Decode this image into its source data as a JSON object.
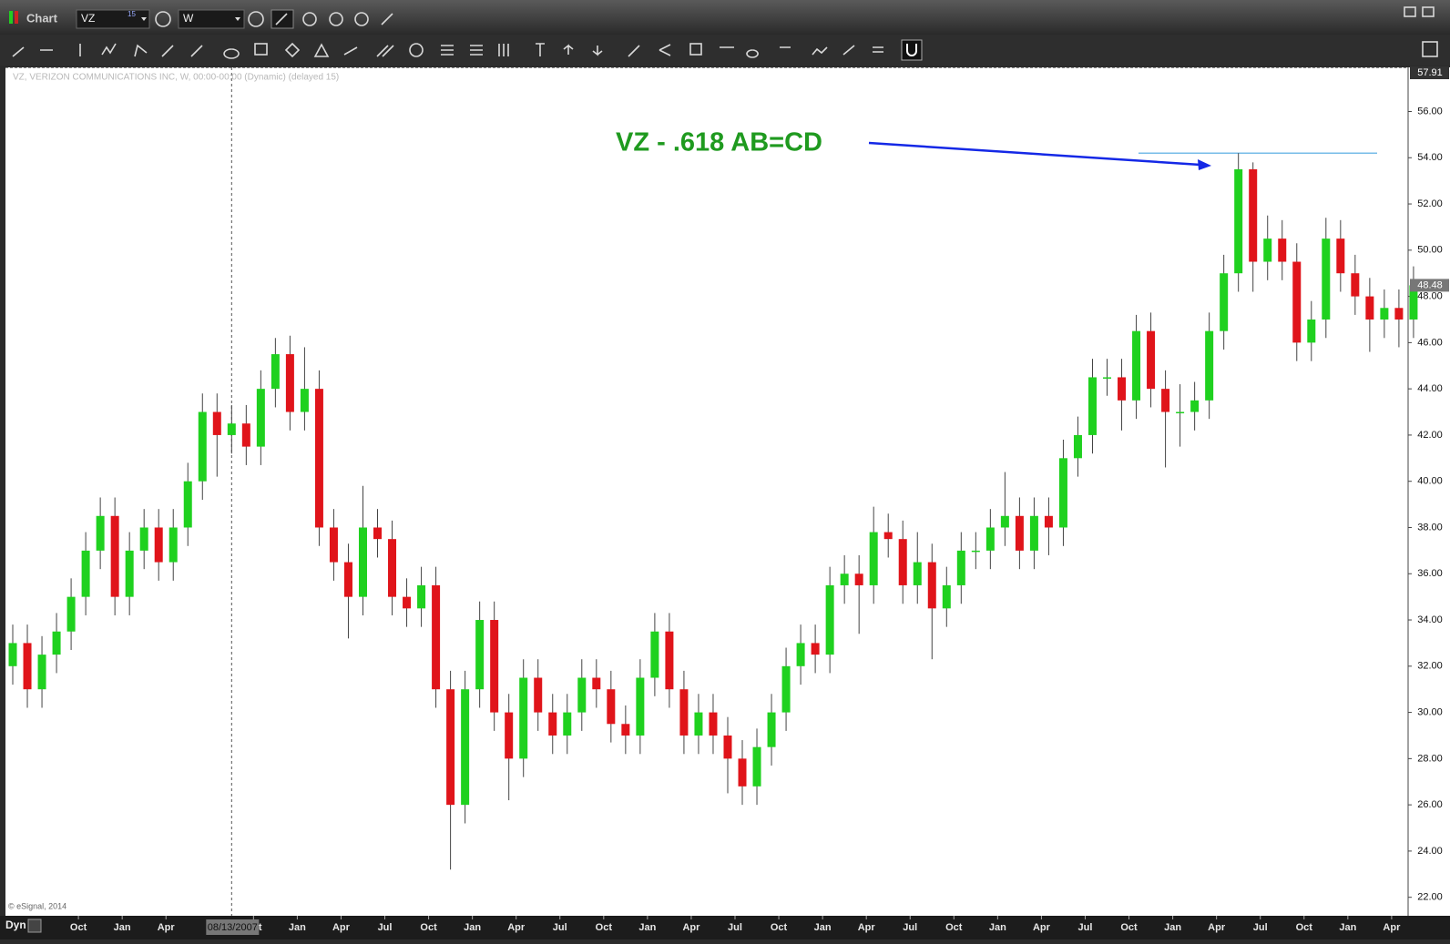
{
  "window": {
    "title": "Chart",
    "symbol": "VZ",
    "symbol_badge": 15,
    "interval": "W",
    "mode": "Dyn",
    "copyright": "© eSignal, 2014"
  },
  "chart_data": {
    "type": "candlestick",
    "label": "VZ, VERIZON COMMUNICATIONS INC, W, 00:00-00:00 (Dynamic) (delayed 15)",
    "up_color": "#1fd11f",
    "down_color": "#e0141a",
    "open": [
      32,
      33,
      31,
      32.5,
      33.5,
      35,
      37,
      38.5,
      35,
      37,
      38,
      36.5,
      38,
      40,
      43,
      42,
      42.5,
      41.5,
      44,
      45.5,
      43,
      44,
      38,
      36.5,
      35,
      38,
      37.5,
      35,
      34.5,
      35.5,
      31,
      26,
      31,
      34,
      30,
      28,
      31.5,
      30,
      29,
      30,
      31.5,
      31,
      29.5,
      29,
      31.5,
      33.5,
      31,
      29,
      30,
      29,
      28,
      26.8,
      28.5,
      30,
      32,
      33,
      32.5,
      35.5,
      36,
      35.5,
      37.8,
      37.5,
      35.5,
      36.5,
      34.5,
      35.5,
      37,
      37,
      38,
      38.5,
      37,
      38.5,
      38,
      41,
      42,
      44.5,
      44.5,
      43.5,
      46.5,
      44,
      43,
      43,
      43.5,
      46.5,
      49,
      53.5,
      49.5,
      50.5,
      49.5,
      46,
      47,
      50.5,
      49,
      48,
      47,
      47.5,
      47
    ],
    "high": [
      33.8,
      33.8,
      33.3,
      34.3,
      35.8,
      37.8,
      39.3,
      39.3,
      37.8,
      38.8,
      38.8,
      38.8,
      40.8,
      43.8,
      43.8,
      43.3,
      43.3,
      44.8,
      46.2,
      46.3,
      45.8,
      44.8,
      38.8,
      37.3,
      39.8,
      38.8,
      38.3,
      35.8,
      36.3,
      36.3,
      31.8,
      31.8,
      34.8,
      34.8,
      30.8,
      32.3,
      32.3,
      30.8,
      30.8,
      32.3,
      32.3,
      31.8,
      30.3,
      32.3,
      34.3,
      34.3,
      31.8,
      30.8,
      30.8,
      29.8,
      28.8,
      29.3,
      30.8,
      32.8,
      33.8,
      33.8,
      36.3,
      36.8,
      36.8,
      38.9,
      38.6,
      38.3,
      37.8,
      37.3,
      36.3,
      37.8,
      37.8,
      38.8,
      40.4,
      39.3,
      39.3,
      39.3,
      41.8,
      42.8,
      45.3,
      45.3,
      45.3,
      47.2,
      47.3,
      44.8,
      44.2,
      44.3,
      47.3,
      49.8,
      54.2,
      53.8,
      51.5,
      51.3,
      50.3,
      47.8,
      51.4,
      51.3,
      49.8,
      48.8,
      48.3,
      48.3,
      49.3
    ],
    "low": [
      31.2,
      30.2,
      30.2,
      31.7,
      32.7,
      34.2,
      36.2,
      34.2,
      34.2,
      36.2,
      35.7,
      35.7,
      37.2,
      39.2,
      40.2,
      41.2,
      40.7,
      40.7,
      43.2,
      42.2,
      42.2,
      37.2,
      35.7,
      33.2,
      34.2,
      36.7,
      34.2,
      33.7,
      33.7,
      30.2,
      23.2,
      25.2,
      30.2,
      29.2,
      26.2,
      27.2,
      29.2,
      28.2,
      28.2,
      29.2,
      30.2,
      28.7,
      28.2,
      28.2,
      30.7,
      30.2,
      28.2,
      28.2,
      28.2,
      26.5,
      26,
      26,
      27.7,
      29.2,
      31.2,
      31.7,
      31.7,
      34.7,
      33.4,
      34.7,
      36.7,
      34.7,
      34.7,
      32.3,
      33.7,
      34.7,
      36.2,
      36.2,
      37.2,
      36.2,
      36.2,
      36.8,
      37.2,
      40.2,
      41.2,
      43.7,
      42.2,
      42.7,
      43.2,
      40.6,
      41.5,
      42.2,
      42.7,
      45.7,
      48.2,
      48.2,
      48.7,
      48.7,
      45.2,
      45.2,
      46.2,
      48.2,
      47.2,
      45.6,
      46.2,
      45.8,
      46.2
    ],
    "close": [
      33,
      31,
      32.5,
      33.5,
      35,
      37,
      38.5,
      35,
      37,
      38,
      36.5,
      38,
      40,
      43,
      42,
      42.5,
      41.5,
      44,
      45.5,
      43,
      44,
      38,
      36.5,
      35,
      38,
      37.5,
      35,
      34.5,
      35.5,
      31,
      26,
      31,
      34,
      30,
      28,
      31.5,
      30,
      29,
      30,
      31.5,
      31,
      29.5,
      29,
      31.5,
      33.5,
      31,
      29,
      30,
      29,
      28,
      26.8,
      28.5,
      30,
      32,
      33,
      32.5,
      35.5,
      36,
      35.5,
      37.8,
      37.5,
      35.5,
      36.5,
      34.5,
      35.5,
      37,
      37,
      38,
      38.5,
      37,
      38.5,
      38,
      41,
      42,
      44.5,
      44.5,
      43.5,
      46.5,
      44,
      43,
      43,
      43.5,
      46.5,
      49,
      53.5,
      49.5,
      50.5,
      49.5,
      46,
      47,
      50.5,
      49,
      48,
      47,
      47.5,
      47,
      48.48
    ],
    "xticks": [
      {
        "value": 5,
        "label": "Oct"
      },
      {
        "value": 8,
        "label": "Jan"
      },
      {
        "value": 11,
        "label": "Apr"
      },
      {
        "value": 17,
        "label": "Oct"
      },
      {
        "value": 20,
        "label": "Jan"
      },
      {
        "value": 23,
        "label": "Apr"
      },
      {
        "value": 26,
        "label": "Jul"
      },
      {
        "value": 29,
        "label": "Oct"
      },
      {
        "value": 32,
        "label": "Jan"
      },
      {
        "value": 35,
        "label": "Apr"
      },
      {
        "value": 38,
        "label": "Jul"
      },
      {
        "value": 41,
        "label": "Oct"
      },
      {
        "value": 44,
        "label": "Jan"
      },
      {
        "value": 47,
        "label": "Apr"
      },
      {
        "value": 50,
        "label": "Jul"
      },
      {
        "value": 53,
        "label": "Oct"
      },
      {
        "value": 56,
        "label": "Jan"
      },
      {
        "value": 59,
        "label": "Apr"
      },
      {
        "value": 62,
        "label": "Jul"
      },
      {
        "value": 65,
        "label": "Oct"
      },
      {
        "value": 68,
        "label": "Jan"
      },
      {
        "value": 71,
        "label": "Apr"
      },
      {
        "value": 74,
        "label": "Jul"
      },
      {
        "value": 77,
        "label": "Oct"
      },
      {
        "value": 80,
        "label": "Jan"
      },
      {
        "value": 83,
        "label": "Apr"
      },
      {
        "value": 86,
        "label": "Jul"
      },
      {
        "value": 89,
        "label": "Oct"
      },
      {
        "value": 92,
        "label": "Jan"
      },
      {
        "value": 95,
        "label": "Apr"
      }
    ],
    "cursor": {
      "value": 15.5,
      "label": "08/13/2007"
    },
    "ylim": [
      21.2,
      57.91
    ],
    "yticks": [
      {
        "value": 22,
        "label": "22.00"
      },
      {
        "value": 24,
        "label": "24.00"
      },
      {
        "value": 26,
        "label": "26.00"
      },
      {
        "value": 28,
        "label": "28.00"
      },
      {
        "value": 30,
        "label": "30.00"
      },
      {
        "value": 32,
        "label": "32.00"
      },
      {
        "value": 34,
        "label": "34.00"
      },
      {
        "value": 36,
        "label": "36.00"
      },
      {
        "value": 38,
        "label": "38.00"
      },
      {
        "value": 40,
        "label": "40.00"
      },
      {
        "value": 42,
        "label": "42.00"
      },
      {
        "value": 44,
        "label": "44.00"
      },
      {
        "value": 46,
        "label": "46.00"
      },
      {
        "value": 48,
        "label": "48.00"
      },
      {
        "value": 50,
        "label": "50.00"
      },
      {
        "value": 52,
        "label": "52.00"
      },
      {
        "value": 54,
        "label": "54.00"
      },
      {
        "value": 56,
        "label": "56.00"
      }
    ],
    "annotation": {
      "text": "VZ - .618 AB=CD",
      "color": "#1f9a1f"
    },
    "hline": {
      "value": 54.2,
      "color": "#4aa6e0"
    }
  }
}
